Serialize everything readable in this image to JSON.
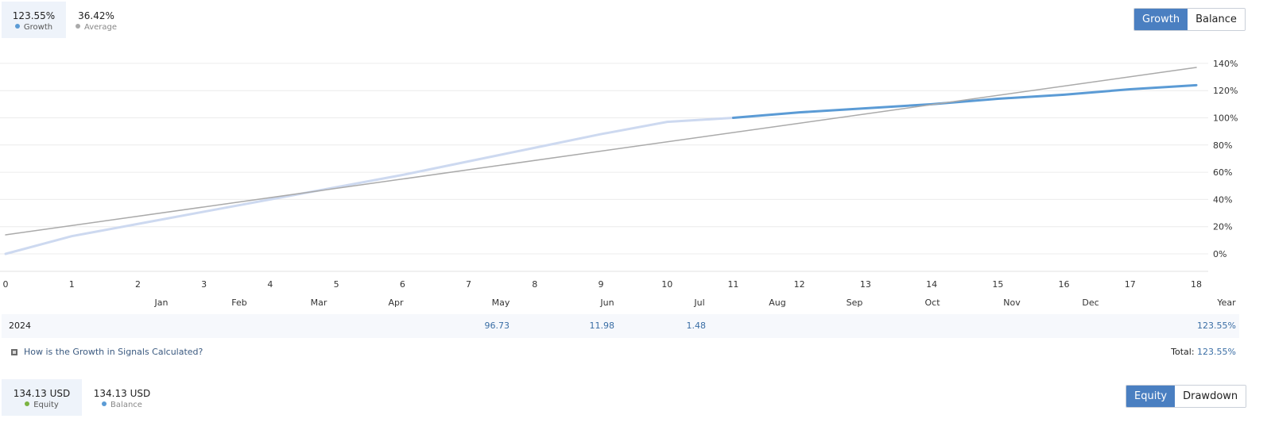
{
  "growth_header": {
    "growth": {
      "value": "123.55%",
      "label": "Growth",
      "color": "#5b9bd5"
    },
    "average": {
      "value": "36.42%",
      "label": "Average",
      "color": "#aaaaaa"
    }
  },
  "toggle_top": {
    "growth": "Growth",
    "balance": "Balance",
    "active": "Growth"
  },
  "chart_data": {
    "type": "line",
    "x": [
      0,
      1,
      2,
      3,
      4,
      5,
      6,
      7,
      8,
      9,
      10,
      11,
      12,
      13,
      14,
      15,
      16,
      17,
      18
    ],
    "x_ticks": [
      "0",
      "1",
      "2",
      "3",
      "4",
      "5",
      "6",
      "7",
      "8",
      "9",
      "10",
      "11",
      "12",
      "13",
      "14",
      "15",
      "16",
      "17",
      "18"
    ],
    "y_ticks": [
      "0%",
      "20%",
      "40%",
      "60%",
      "80%",
      "100%",
      "120%",
      "140%"
    ],
    "ylim": [
      -10,
      150
    ],
    "xlim": [
      0,
      18
    ],
    "grid": true,
    "month_labels": [
      "Jan",
      "Feb",
      "Mar",
      "Apr",
      "May",
      "Jun",
      "Jul",
      "Aug",
      "Sep",
      "Oct",
      "Nov",
      "Dec",
      "Year"
    ],
    "series": [
      {
        "name": "Growth",
        "color": "#6fa0dc",
        "style": "faded",
        "points": [
          [
            0,
            0
          ],
          [
            1,
            13
          ],
          [
            2,
            22
          ],
          [
            3,
            31
          ],
          [
            4,
            40
          ],
          [
            5,
            49
          ],
          [
            6,
            58
          ],
          [
            7,
            68
          ],
          [
            8,
            78
          ],
          [
            9,
            88
          ],
          [
            10,
            97
          ],
          [
            11,
            100
          ]
        ]
      },
      {
        "name": "Growth",
        "color": "#5b9bd5",
        "style": "solid",
        "points": [
          [
            11,
            100
          ],
          [
            12,
            104
          ],
          [
            13,
            107
          ],
          [
            14,
            110
          ],
          [
            15,
            114
          ],
          [
            16,
            117
          ],
          [
            17,
            121
          ],
          [
            18,
            124
          ]
        ]
      },
      {
        "name": "Average",
        "color": "#aaaaaa",
        "style": "thin",
        "points": [
          [
            0,
            14
          ],
          [
            18,
            137
          ]
        ]
      }
    ]
  },
  "year_row": {
    "year": "2024",
    "may": "96.73",
    "jun": "11.98",
    "jul": "1.48",
    "year_total": "123.55%"
  },
  "help_link": "How is the Growth in Signals Calculated?",
  "total": {
    "label": "Total:",
    "value": "123.55%"
  },
  "equity_header": {
    "equity": {
      "value": "134.13 USD",
      "label": "Equity",
      "color": "#7cb342"
    },
    "balance": {
      "value": "134.13 USD",
      "label": "Balance",
      "color": "#5b9bd5"
    }
  },
  "toggle_bottom": {
    "equity": "Equity",
    "drawdown": "Drawdown",
    "active": "Equity"
  }
}
